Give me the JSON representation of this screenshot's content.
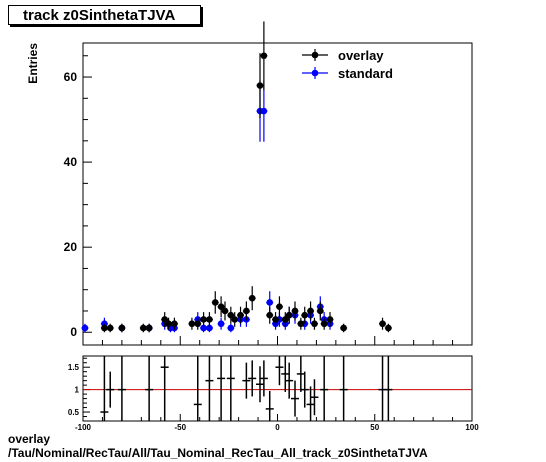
{
  "title": "track z0SinthetaTJVA",
  "footer": {
    "line1": "overlay",
    "line2": "/Tau/Nominal/RecTau/All/Tau_Nominal_RecTau_All_track_z0SinthetaTJVA"
  },
  "colors": {
    "overlay": "#000000",
    "standard": "#0000ff",
    "ratio_line": "#cc0000"
  },
  "chart_data": [
    {
      "type": "scatter",
      "ylabel": "Entries",
      "xlim": [
        -100,
        100
      ],
      "ylim": [
        -3,
        68
      ],
      "xticks": [
        -100,
        -50,
        0,
        50,
        100
      ],
      "yticks": [
        0,
        20,
        40,
        60
      ],
      "legend": "top-right",
      "series": [
        {
          "name": "overlay",
          "color": "#000000",
          "points": [
            [
              -89,
              1
            ],
            [
              -86,
              1
            ],
            [
              -80,
              1
            ],
            [
              -69,
              1
            ],
            [
              -66,
              1
            ],
            [
              -58,
              3
            ],
            [
              -56,
              2
            ],
            [
              -53,
              2
            ],
            [
              -44,
              2
            ],
            [
              -41,
              2
            ],
            [
              -38,
              3
            ],
            [
              -35,
              3
            ],
            [
              -32,
              7
            ],
            [
              -29,
              6
            ],
            [
              -27,
              5
            ],
            [
              -24,
              4
            ],
            [
              -22,
              3
            ],
            [
              -19,
              4
            ],
            [
              -16,
              5
            ],
            [
              -13,
              8
            ],
            [
              -9,
              58
            ],
            [
              -7,
              65
            ],
            [
              -4,
              4
            ],
            [
              -1,
              3
            ],
            [
              1,
              6
            ],
            [
              4,
              3
            ],
            [
              6,
              4
            ],
            [
              9,
              5
            ],
            [
              12,
              2
            ],
            [
              14,
              4
            ],
            [
              17,
              5
            ],
            [
              19,
              2
            ],
            [
              22,
              5
            ],
            [
              24,
              2
            ],
            [
              27,
              3
            ],
            [
              34,
              1
            ],
            [
              54,
              2
            ],
            [
              57,
              1
            ]
          ]
        },
        {
          "name": "standard",
          "color": "#0000ff",
          "points": [
            [
              -99,
              1
            ],
            [
              -89,
              2
            ],
            [
              -80,
              1
            ],
            [
              -66,
              1
            ],
            [
              -58,
              2
            ],
            [
              -55,
              1
            ],
            [
              -53,
              1
            ],
            [
              -41,
              3
            ],
            [
              -38,
              1
            ],
            [
              -35,
              1
            ],
            [
              -29,
              2
            ],
            [
              -24,
              1
            ],
            [
              -19,
              3
            ],
            [
              -16,
              3
            ],
            [
              -9,
              52
            ],
            [
              -7,
              52
            ],
            [
              -4,
              7
            ],
            [
              -1,
              2
            ],
            [
              1,
              3
            ],
            [
              4,
              2
            ],
            [
              6,
              4
            ],
            [
              9,
              4
            ],
            [
              14,
              2
            ],
            [
              17,
              4
            ],
            [
              22,
              6
            ],
            [
              24,
              3
            ],
            [
              27,
              2
            ]
          ]
        }
      ]
    },
    {
      "type": "scatter",
      "name": "ratio",
      "xlim": [
        -100,
        100
      ],
      "ylim": [
        0.3,
        1.75
      ],
      "xticks": [
        -100,
        -50,
        0,
        50,
        100
      ],
      "xticklabels": [
        "-100",
        "-50",
        "0",
        "50",
        "100"
      ],
      "yticks": [
        0.5,
        1,
        1.5
      ],
      "yticklabels": [
        "0.5",
        "1",
        "1.5"
      ],
      "reference_line": 1,
      "points": [
        [
          -89,
          0.5
        ],
        [
          -86,
          1.0
        ],
        [
          -80,
          1.0
        ],
        [
          -66,
          1.0
        ],
        [
          -58,
          1.5
        ],
        [
          -41,
          0.67
        ],
        [
          -35,
          1.2
        ],
        [
          -29,
          1.25
        ],
        [
          -24,
          1.25
        ],
        [
          -16,
          1.2
        ],
        [
          -13,
          1.25
        ],
        [
          -9,
          1.12
        ],
        [
          -7,
          1.25
        ],
        [
          -4,
          0.57
        ],
        [
          1,
          1.5
        ],
        [
          4,
          1.35
        ],
        [
          6,
          1.2
        ],
        [
          9,
          0.8
        ],
        [
          12,
          1.35
        ],
        [
          14,
          1.0
        ],
        [
          17,
          0.67
        ],
        [
          19,
          0.83
        ],
        [
          24,
          1.0
        ],
        [
          34,
          1.0
        ],
        [
          54,
          1.0
        ],
        [
          57,
          1.0
        ]
      ]
    }
  ]
}
